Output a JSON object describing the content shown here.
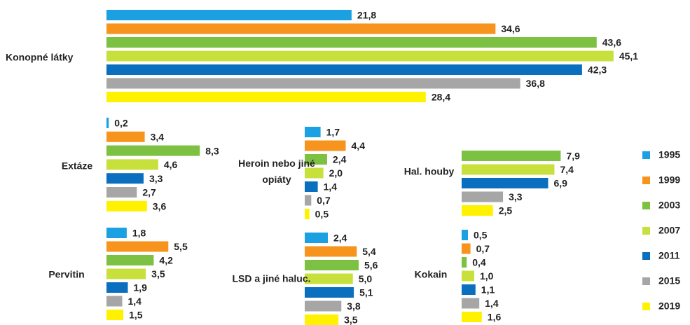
{
  "chart_data": {
    "type": "bar",
    "categories": [
      "Konopné látky",
      "Extáze",
      "Heroin nebo jiné opiáty",
      "Hal. houby",
      "Pervitin",
      "LSD a jiné haluc.",
      "Kokain"
    ],
    "series": [
      {
        "name": "1995",
        "color": "#1ba1e2",
        "values": [
          21.8,
          0.2,
          1.7,
          null,
          1.8,
          2.4,
          0.5
        ],
        "value_labels": [
          "21,8",
          "0,2",
          "1,7",
          null,
          "1,8",
          "2,4",
          "0,5"
        ]
      },
      {
        "name": "1999",
        "color": "#f7941d",
        "values": [
          34.6,
          3.4,
          4.4,
          null,
          5.5,
          5.4,
          0.7
        ],
        "value_labels": [
          "34,6",
          "3,4",
          "4,4",
          null,
          "5,5",
          "5,4",
          "0,7"
        ]
      },
      {
        "name": "2003",
        "color": "#7cc142",
        "values": [
          43.6,
          8.3,
          2.4,
          7.9,
          4.2,
          5.6,
          0.4
        ],
        "value_labels": [
          "43,6",
          "8,3",
          "2,4",
          "7,9",
          "4,2",
          "5,6",
          "0,4"
        ]
      },
      {
        "name": "2007",
        "color": "#c8e03c",
        "values": [
          45.1,
          4.6,
          2.0,
          7.4,
          3.5,
          5.0,
          1.0
        ],
        "value_labels": [
          "45,1",
          "4,6",
          "2,0",
          "7,4",
          "3,5",
          "5,0",
          "1,0"
        ]
      },
      {
        "name": "2011",
        "color": "#0b6fbf",
        "values": [
          42.3,
          3.3,
          1.4,
          6.9,
          1.9,
          5.1,
          1.1
        ],
        "value_labels": [
          "42,3",
          "3,3",
          "1,4",
          "6,9",
          "1,9",
          "5,1",
          "1,1"
        ]
      },
      {
        "name": "2015",
        "color": "#a6a6a6",
        "values": [
          36.8,
          2.7,
          0.7,
          3.3,
          1.4,
          3.8,
          1.4
        ],
        "value_labels": [
          "36,8",
          "2,7",
          "0,7",
          "3,3",
          "1,4",
          "3,8",
          "1,4"
        ]
      },
      {
        "name": "2019",
        "color": "#fff200",
        "values": [
          28.4,
          3.6,
          0.5,
          2.5,
          1.5,
          3.5,
          1.6
        ],
        "value_labels": [
          "28,4",
          "3,6",
          "0,5",
          "2,5",
          "1,5",
          "3,5",
          "1,6"
        ]
      }
    ]
  }
}
